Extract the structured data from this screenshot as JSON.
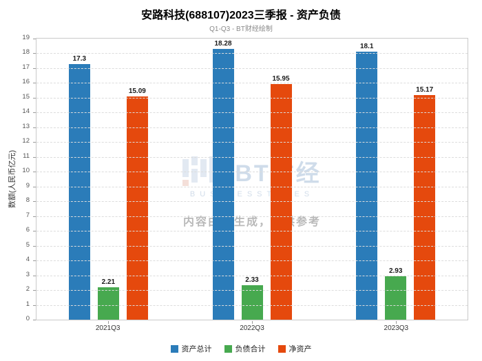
{
  "title": "安路科技(688107)2023三季报 - 资产负债",
  "subtitle": "Q1-Q3 - BT财经绘制",
  "watermark": {
    "brand": "BT财经",
    "brand_sub": "BUSINESSTIMES",
    "disclaimer": "内容由AI生成，仅供参考"
  },
  "chart_data": {
    "type": "bar",
    "title": "安路科技(688107)2023三季报 - 资产负债",
    "subtitle": "Q1-Q3 - BT财经绘制",
    "categories": [
      "2021Q3",
      "2022Q3",
      "2023Q3"
    ],
    "series": [
      {
        "name": "资产总计",
        "color": "#2b7cb9",
        "values": [
          17.3,
          18.28,
          18.1
        ]
      },
      {
        "name": "负债合计",
        "color": "#47a94f",
        "values": [
          2.21,
          2.33,
          2.93
        ]
      },
      {
        "name": "净资产",
        "color": "#e5490d",
        "values": [
          15.09,
          15.95,
          15.17
        ]
      }
    ],
    "xlabel": "",
    "ylabel": "数额(人民币亿元)",
    "ylim": [
      0,
      19
    ],
    "ytick_step": 1,
    "grid": true,
    "grid_style": "dashed",
    "legend_position": "bottom"
  }
}
